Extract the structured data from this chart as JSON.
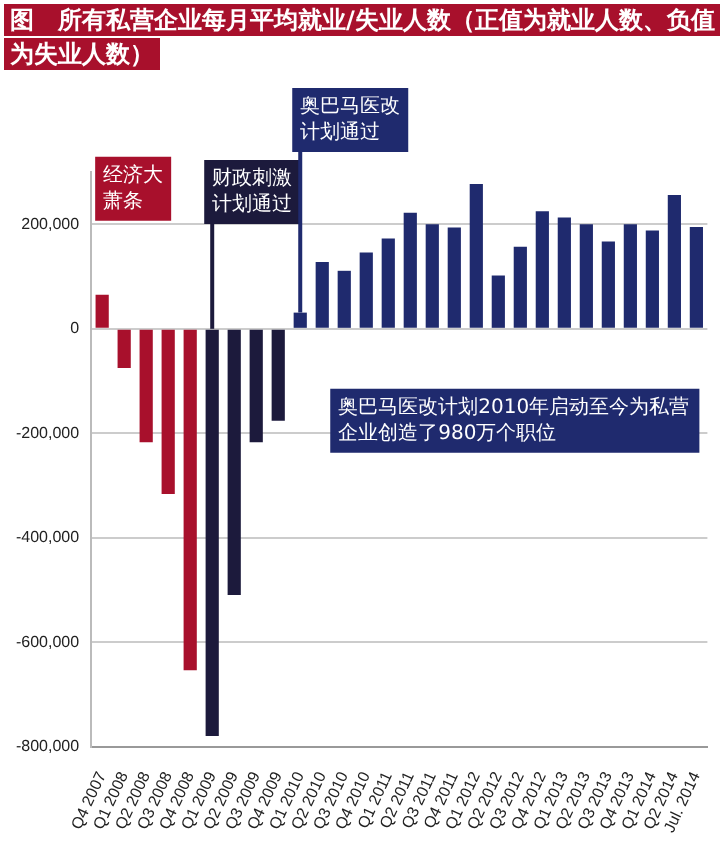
{
  "chart_data": {
    "type": "bar",
    "title": "图　所有私营企业每月平均就业/失业人数（正值为就业人数、负值为失业人数）",
    "categories": [
      "Q4 2007",
      "Q1 2008",
      "Q2 2008",
      "Q3 2008",
      "Q4 2008",
      "Q1 2009",
      "Q2 2009",
      "Q3 2009",
      "Q4 2009",
      "Q1 2010",
      "Q2 2010",
      "Q3 2010",
      "Q4 2010",
      "Q1 2011",
      "Q2 2011",
      "Q3 2011",
      "Q4 2011",
      "Q1 2012",
      "Q2 2012",
      "Q3 2012",
      "Q4 2012",
      "Q1 2013",
      "Q2 2013",
      "Q3 2013",
      "Q4 2013",
      "Q1 2014",
      "Q2 2014",
      "Jul. 2014"
    ],
    "values": [
      65000,
      -75000,
      -217000,
      -316000,
      -653000,
      -779000,
      -509000,
      -217000,
      -176000,
      31000,
      128000,
      111000,
      146000,
      173000,
      222000,
      200000,
      194000,
      277000,
      102000,
      157000,
      225000,
      213000,
      200000,
      167000,
      200000,
      188000,
      256000,
      195000
    ],
    "colors": [
      "#a8102c",
      "#a8102c",
      "#a8102c",
      "#a8102c",
      "#a8102c",
      "#1c1a3c",
      "#1c1a3c",
      "#1c1a3c",
      "#1c1a3c",
      "#1f2a6e",
      "#1f2a6e",
      "#1f2a6e",
      "#1f2a6e",
      "#1f2a6e",
      "#1f2a6e",
      "#1f2a6e",
      "#1f2a6e",
      "#1f2a6e",
      "#1f2a6e",
      "#1f2a6e",
      "#1f2a6e",
      "#1f2a6e",
      "#1f2a6e",
      "#1f2a6e",
      "#1f2a6e",
      "#1f2a6e",
      "#1f2a6e",
      "#1f2a6e"
    ],
    "ylim": [
      -800000,
      300000
    ],
    "yticks": [
      {
        "value": -800000,
        "label": "-800,000"
      },
      {
        "value": -600000,
        "label": "-600,000"
      },
      {
        "value": -400000,
        "label": "-400,000"
      },
      {
        "value": -200000,
        "label": "-200,000"
      },
      {
        "value": 0,
        "label": "0"
      },
      {
        "value": 200000,
        "label": "200,000"
      }
    ],
    "grid": "y",
    "legend": false,
    "annotations": [
      "经济大萧条",
      {
        "text": "财政刺激计划通过",
        "x": "Q1 2009",
        "y": 0
      },
      {
        "text": "奥巴马医改计划通过",
        "x": "Q1 2010",
        "y": 31000
      },
      "奥巴马医改计划2010年启动至今为私营企业创造了980万个职位"
    ]
  }
}
